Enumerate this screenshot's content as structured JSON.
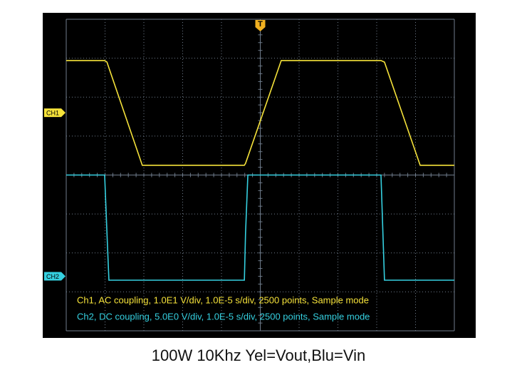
{
  "chart_data": {
    "type": "line",
    "caption": "100W 10Khz Yel=Vout,Blu=Vin",
    "trigger_marker": "T",
    "info_lines": [
      {
        "text": "Ch1, AC coupling, 1.0E1 V/div, 1.0E-5 s/div, 2500 points, Sample mode",
        "color": "#f5e23a"
      },
      {
        "text": "Ch2, DC coupling, 5.0E0 V/div, 1.0E-5 s/div, 2500 points, Sample mode",
        "color": "#35d0e0"
      }
    ],
    "x": [
      -5,
      -4.01,
      -3.95,
      -3.9,
      -3.04,
      -0.41,
      -0.38,
      -0.32,
      0.54,
      3.11,
      3.2,
      4.12,
      5
    ],
    "series": [
      {
        "name": "CH1",
        "color": "#f5e23a",
        "level": 1.6,
        "values": [
          2.94,
          2.94,
          2.9,
          2.75,
          0.25,
          0.25,
          0.3,
          0.47,
          2.94,
          2.94,
          2.9,
          0.25,
          0.25
        ]
      },
      {
        "name": "CH2",
        "color": "#35d0e0",
        "level": -2.6,
        "values": [
          0,
          0,
          -1.5,
          -2.7,
          -2.7,
          -2.7,
          -1.5,
          0,
          0,
          0,
          -2.7,
          -2.7,
          -2.7
        ]
      }
    ],
    "xlim": [
      -5,
      5
    ],
    "ylim": [
      -4,
      4
    ],
    "xticks": [
      -5,
      -4,
      -3,
      -2,
      -1,
      0,
      1,
      2,
      3,
      4,
      5
    ],
    "yticks": [
      -4,
      -3,
      -2,
      -1,
      0,
      1,
      2,
      3,
      4
    ],
    "grid": true
  }
}
